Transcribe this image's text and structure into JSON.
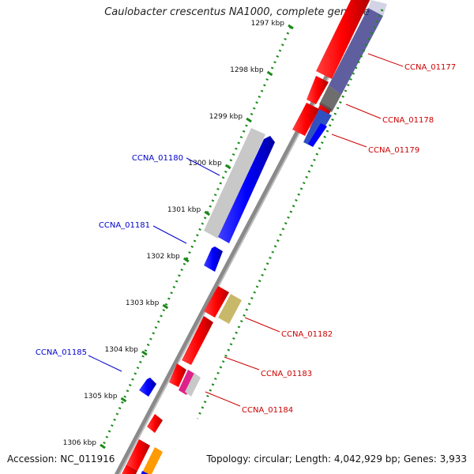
{
  "title": "Caulobacter crescentus NA1000, complete genome",
  "footer": {
    "accession": "Accession: NC_011916",
    "summary": "Topology: circular; Length: 4,042,929 bp; Genes: 3,933"
  },
  "ticks": [
    {
      "label": "1297 kbp",
      "frac": 0.0
    },
    {
      "label": "1298 kbp",
      "frac": 0.125
    },
    {
      "label": "1299 kbp",
      "frac": 0.25
    },
    {
      "label": "1300 kbp",
      "frac": 0.375
    },
    {
      "label": "1301 kbp",
      "frac": 0.5
    },
    {
      "label": "1302 kbp",
      "frac": 0.625
    },
    {
      "label": "1303 kbp",
      "frac": 0.75
    },
    {
      "label": "1304 kbp",
      "frac": 0.875
    },
    {
      "label": "1305 kbp",
      "frac": 1.0
    },
    {
      "label": "1306 kbp",
      "frac": 1.125
    }
  ],
  "gene_labels": [
    {
      "text": "CCNA_01177",
      "side": "right",
      "color": "#cc0000"
    },
    {
      "text": "CCNA_01178",
      "side": "right",
      "color": "#cc0000"
    },
    {
      "text": "CCNA_01179",
      "side": "right",
      "color": "#cc0000"
    },
    {
      "text": "CCNA_01180",
      "side": "left",
      "color": "#0000cc"
    },
    {
      "text": "CCNA_01181",
      "side": "left",
      "color": "#0000cc"
    },
    {
      "text": "CCNA_01182",
      "side": "right",
      "color": "#cc0000"
    },
    {
      "text": "CCNA_01183",
      "side": "right",
      "color": "#cc0000"
    },
    {
      "text": "CCNA_01184",
      "side": "right",
      "color": "#cc0000"
    },
    {
      "text": "CCNA_01185",
      "side": "left",
      "color": "#0000cc"
    }
  ],
  "colors": {
    "forward_gene": "#ff0000",
    "reverse_gene": "#0000ff",
    "backbone": "#8a8a8a",
    "tick_dots": "#1a8a1a",
    "gc_grey": "#c8c8c8",
    "navy_overlay": "#2a2a80",
    "olive_feature": "#c8b86a",
    "pink_feature": "#e0208a",
    "orange_feature": "#ff9a00"
  }
}
